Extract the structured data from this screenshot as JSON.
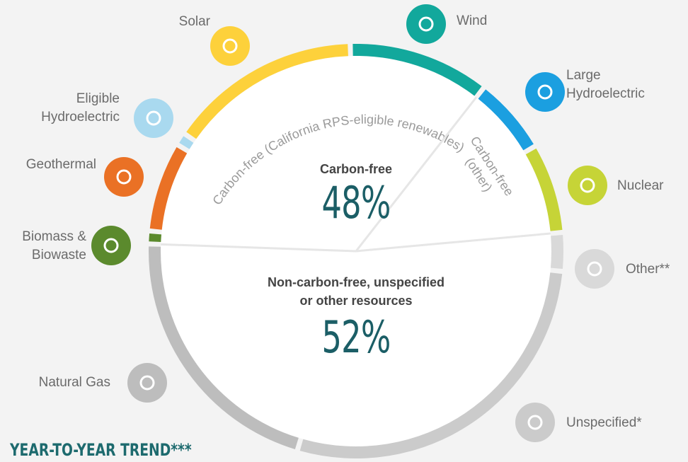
{
  "chart_data": {
    "type": "donut",
    "categories": [
      "Biomass &\nBiowaste",
      "Geothermal",
      "Eligible\nHydroelectric",
      "Solar",
      "Wind",
      "Large\nHydroelectric",
      "Nuclear",
      "Other**",
      "Unspecified*",
      "Natural Gas"
    ],
    "values": [
      1,
      7,
      1,
      15,
      11,
      6,
      7,
      3,
      28,
      21
    ],
    "colors": [
      "#5b8a2d",
      "#ea7125",
      "#a9d9ef",
      "#fdd13b",
      "#12a89c",
      "#1b9fe0",
      "#c6d437",
      "#d9d9d9",
      "#cbcbcb",
      "#bdbdbd"
    ],
    "groups": [
      {
        "name": "Carbon-free",
        "value": 48,
        "value_label": "48%"
      },
      {
        "name": "Non-carbon-free, unspecified\nor other resources",
        "value": 52,
        "value_label": "52%"
      }
    ],
    "arc_labels": [
      "Carbon-free (California RPS-eligible renewables)",
      "Carbon-free\n(other)"
    ]
  },
  "footer": "YEAR-TO-YEAR TREND***"
}
